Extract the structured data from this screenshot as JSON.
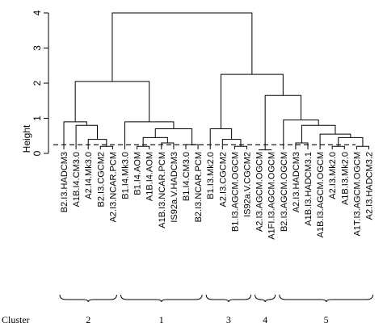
{
  "chart_data": {
    "type": "dendrogram",
    "ylabel": "Height",
    "ylim": [
      0,
      4
    ],
    "yticks": [
      0,
      1,
      2,
      3,
      4
    ],
    "cut_height": 0.2,
    "leaves": [
      {
        "label": "B2.I3.HADCM3",
        "cluster": "2"
      },
      {
        "label": "A1B.I4.CM3.0",
        "cluster": "2"
      },
      {
        "label": "A2.I4.Mk3.0",
        "cluster": "2"
      },
      {
        "label": "B2.I3.CGCM2",
        "cluster": "2"
      },
      {
        "label": "A2.I3.NCAR.PCM",
        "cluster": "2"
      },
      {
        "label": "B1.I4.Mk3.0",
        "cluster": "1"
      },
      {
        "label": "B1.I4.AOM",
        "cluster": "1"
      },
      {
        "label": "A1B.I4.AOM",
        "cluster": "1"
      },
      {
        "label": "A1B.I3.NCAR.PCM",
        "cluster": "1"
      },
      {
        "label": "IS92a.V.HADCM3",
        "cluster": "1"
      },
      {
        "label": "B1.I4.CM3.0",
        "cluster": "1"
      },
      {
        "label": "B2.I3.NCAR.PCM",
        "cluster": "1"
      },
      {
        "label": "B1.I3.Mk2.0",
        "cluster": "3"
      },
      {
        "label": "A2.I3.CGCM2",
        "cluster": "3"
      },
      {
        "label": "B1.I3.AGCM.OGCM",
        "cluster": "3"
      },
      {
        "label": "IS92a.V.CGCM2",
        "cluster": "3"
      },
      {
        "label": "A2.I3.AGCM.OGCM",
        "cluster": "4"
      },
      {
        "label": "A1FI.I3.AGCM.OGCM",
        "cluster": "4"
      },
      {
        "label": "B2.I3.AGCM.OGCM",
        "cluster": "5"
      },
      {
        "label": "A2.I3.HADCM3",
        "cluster": "5"
      },
      {
        "label": "A1B.I3.HADCM3.1",
        "cluster": "5"
      },
      {
        "label": "A1B.I3.AGCM.OGCM",
        "cluster": "5"
      },
      {
        "label": "A2.I3.Mk2.0",
        "cluster": "5"
      },
      {
        "label": "A1B.I3.Mk2.0",
        "cluster": "5"
      },
      {
        "label": "A1T.I3.AGCM.OGCM",
        "cluster": "5"
      },
      {
        "label": "A2.I3.HADCM3.2",
        "cluster": "5"
      }
    ],
    "merges": [
      {
        "id": "m1",
        "left": 3,
        "right": 4,
        "height": 0.2
      },
      {
        "id": "m2",
        "left": 2,
        "right": "m1",
        "height": 0.4
      },
      {
        "id": "m3",
        "left": 1,
        "right": "m2",
        "height": 0.8
      },
      {
        "id": "m4",
        "left": 0,
        "right": "m3",
        "height": 0.9
      },
      {
        "id": "m5",
        "left": 6,
        "right": 7,
        "height": 0.2
      },
      {
        "id": "m6",
        "left": 8,
        "right": 9,
        "height": 0.3
      },
      {
        "id": "m7",
        "left": "m5",
        "right": "m6",
        "height": 0.45
      },
      {
        "id": "m8",
        "left": 10,
        "right": 11,
        "height": 0.25
      },
      {
        "id": "m9",
        "left": "m7",
        "right": "m8",
        "height": 0.7
      },
      {
        "id": "m10",
        "left": 5,
        "right": "m9",
        "height": 0.9
      },
      {
        "id": "m11",
        "left": "m4",
        "right": "m10",
        "height": 2.05
      },
      {
        "id": "m12",
        "left": 14,
        "right": 15,
        "height": 0.2
      },
      {
        "id": "m13",
        "left": 13,
        "right": "m12",
        "height": 0.4
      },
      {
        "id": "m14",
        "left": 12,
        "right": "m13",
        "height": 0.7
      },
      {
        "id": "m15",
        "left": 16,
        "right": 17,
        "height": 0.1
      },
      {
        "id": "m16",
        "left": 19,
        "right": 20,
        "height": 0.3
      },
      {
        "id": "m17",
        "left": 22,
        "right": 23,
        "height": 0.2
      },
      {
        "id": "m18",
        "left": 24,
        "right": 25,
        "height": 0.2
      },
      {
        "id": "m19",
        "left": "m17",
        "right": "m18",
        "height": 0.45
      },
      {
        "id": "m20",
        "left": 21,
        "right": "m19",
        "height": 0.55
      },
      {
        "id": "m21",
        "left": "m16",
        "right": "m20",
        "height": 0.8
      },
      {
        "id": "m22",
        "left": 18,
        "right": "m21",
        "height": 0.95
      },
      {
        "id": "m23",
        "left": "m15",
        "right": "m22",
        "height": 1.65
      },
      {
        "id": "m24",
        "left": "m14",
        "right": "m23",
        "height": 2.25
      },
      {
        "id": "m25",
        "left": "m11",
        "right": "m24",
        "height": 4.0
      }
    ],
    "clusters_label": "Cluster",
    "clusters": [
      {
        "id": "2",
        "first": 0,
        "last": 4
      },
      {
        "id": "1",
        "first": 5,
        "last": 11
      },
      {
        "id": "3",
        "first": 12,
        "last": 15
      },
      {
        "id": "4",
        "first": 16,
        "last": 17
      },
      {
        "id": "5",
        "first": 18,
        "last": 25
      }
    ]
  }
}
